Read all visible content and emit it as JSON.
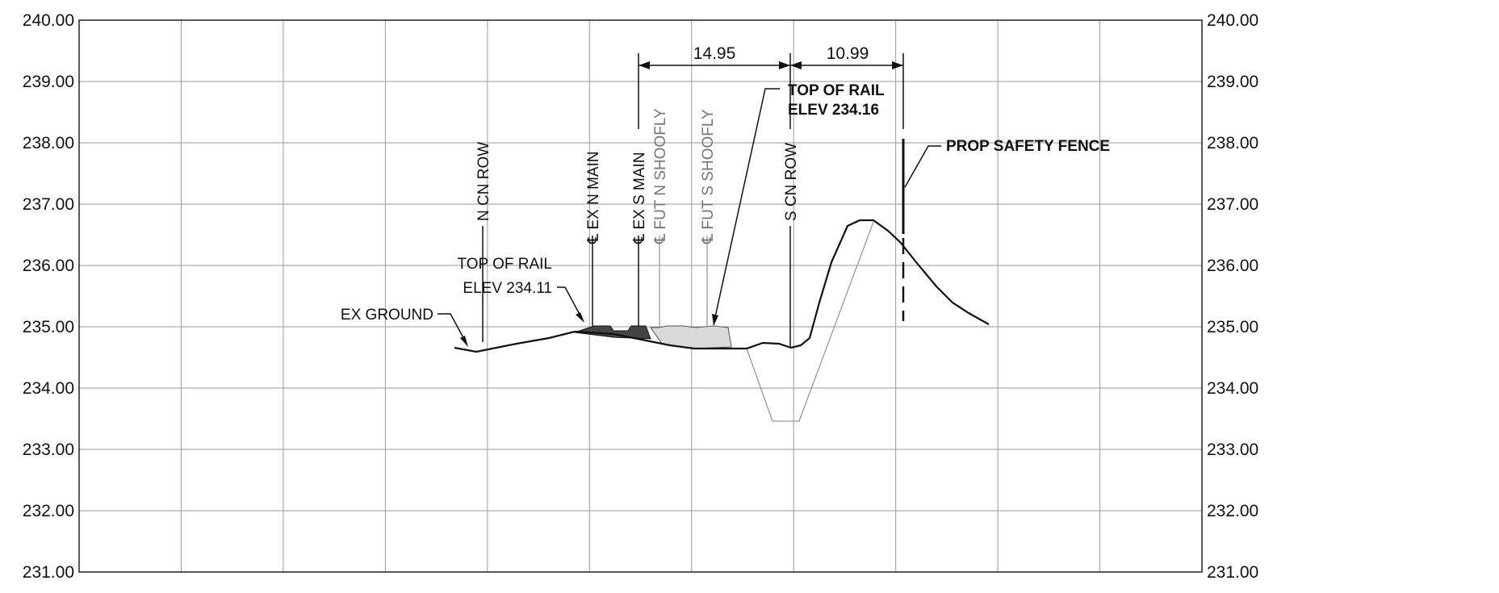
{
  "axis": {
    "y_ticks": [
      "240.00",
      "239.00",
      "238.00",
      "237.00",
      "236.00",
      "235.00",
      "234.00",
      "233.00",
      "232.00",
      "231.00"
    ],
    "y_values": [
      240,
      239,
      238,
      237,
      236,
      235,
      234,
      233,
      232,
      231
    ]
  },
  "labels": {
    "n_cn_row": "N CN ROW",
    "s_cn_row": "S CN ROW",
    "ex_n_main": "℄ EX N MAIN",
    "ex_s_main": "℄ EX S MAIN",
    "fut_n_shoofly": "℄ FUT N SHOOFLY",
    "fut_s_shoofly": "℄ FUT S SHOOFLY",
    "top_rail_left_1": "TOP OF RAIL",
    "top_rail_left_2": "ELEV 234.11",
    "top_rail_right_1": "TOP OF RAIL",
    "top_rail_right_2": "ELEV 234.16",
    "ex_ground": "EX GROUND",
    "prop_safety_fence": "PROP SAFETY FENCE"
  },
  "dimensions": {
    "dim_1": "14.95",
    "dim_2": "10.99"
  },
  "colors": {
    "grid": "#9a9a9a",
    "ground": "#111111",
    "proposed_ditch": "#999999",
    "future_label": "#777777"
  }
}
